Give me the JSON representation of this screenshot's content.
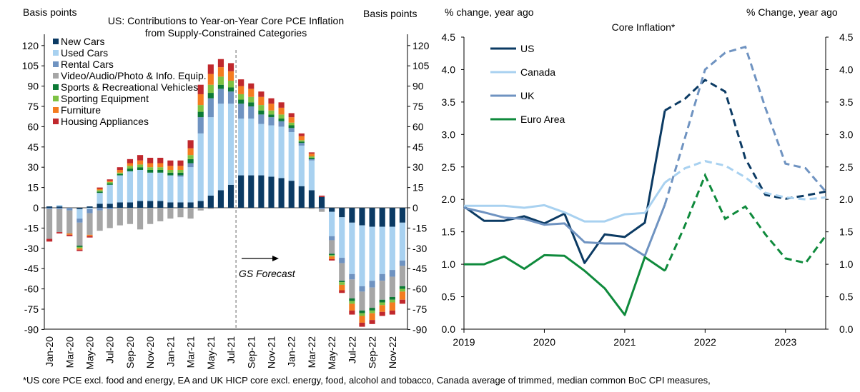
{
  "chart_data": [
    {
      "type": "bar",
      "stacked": true,
      "title": "US: Contributions to Year-on-Year Core PCE Inflation from Supply-Constrained Categories",
      "title_lines": [
        "US: Contributions to Year-on-Year Core PCE Inflation",
        "from Supply-Constrained Categories"
      ],
      "ylabel_left": "Basis points",
      "ylabel_right": "Basis points",
      "ylim": [
        -90,
        130
      ],
      "yticks": [
        120,
        105,
        90,
        75,
        60,
        45,
        30,
        15,
        0,
        -15,
        -30,
        -45,
        -60,
        -75,
        -90
      ],
      "ytick_labels": [
        "120",
        "105",
        "90",
        "75",
        "60",
        "45",
        "30",
        "15",
        "0",
        "-15",
        "-30",
        "-45",
        "-60",
        "-75",
        "-90"
      ],
      "categories": [
        "Jan-20",
        "Feb-20",
        "Mar-20",
        "Apr-20",
        "May-20",
        "Jun-20",
        "Jul-20",
        "Aug-20",
        "Sep-20",
        "Oct-20",
        "Nov-20",
        "Dec-20",
        "Jan-21",
        "Feb-21",
        "Mar-21",
        "Apr-21",
        "May-21",
        "Jun-21",
        "Jul-21",
        "Aug-21",
        "Sep-21",
        "Oct-21",
        "Nov-21",
        "Dec-21",
        "Jan-22",
        "Feb-22",
        "Mar-22",
        "Apr-22",
        "May-22",
        "Jun-22",
        "Jul-22",
        "Aug-22",
        "Sep-22",
        "Oct-22",
        "Nov-22",
        "Dec-22"
      ],
      "xtick_labels": [
        "Jan-20",
        "Mar-20",
        "May-20",
        "Jul-20",
        "Sep-20",
        "Nov-20",
        "Jan-21",
        "Mar-21",
        "May-21",
        "Jul-21",
        "Sep-21",
        "Nov-21",
        "Jan-22",
        "Mar-22",
        "May-22",
        "Jul-22",
        "Sep-22",
        "Nov-22"
      ],
      "forecast_start": "Aug-21",
      "annotation": "GS Forecast",
      "series": [
        {
          "name": "New Cars",
          "color": "#0b3a63",
          "values": [
            1,
            1,
            0,
            -1,
            1,
            3,
            3,
            4,
            4,
            5,
            5,
            5,
            4,
            4,
            4,
            5,
            9,
            13,
            17,
            24,
            24,
            24,
            23,
            22,
            20,
            16,
            13,
            8,
            -3,
            -7,
            -11,
            -13,
            -14,
            -14,
            -14,
            -11
          ]
        },
        {
          "name": "Used Cars",
          "color": "#a8d1f0",
          "values": [
            0,
            1,
            0,
            -7,
            -1,
            8,
            14,
            20,
            23,
            23,
            21,
            21,
            20,
            19,
            26,
            50,
            58,
            64,
            60,
            42,
            42,
            38,
            38,
            38,
            36,
            30,
            22,
            0,
            -18,
            -30,
            -38,
            -45,
            -40,
            -35,
            -32,
            -28
          ]
        },
        {
          "name": "Rental Cars",
          "color": "#6f93c1",
          "values": [
            -1,
            -1,
            -2,
            -3,
            -3,
            -2,
            -1,
            0,
            0,
            0,
            0,
            0,
            0,
            1,
            3,
            12,
            14,
            11,
            9,
            11,
            9,
            7,
            6,
            4,
            3,
            2,
            1,
            -1,
            -3,
            -4,
            -4,
            -4,
            -5,
            -5,
            -5,
            -4
          ]
        },
        {
          "name": "Video/Audio/Photo & Info. Equip.",
          "color": "#a6a6a6",
          "values": [
            -22,
            -17,
            -17,
            -17,
            -16,
            -15,
            -14,
            -13,
            -12,
            -16,
            -12,
            -10,
            -8,
            -7,
            -8,
            -2,
            -1,
            0,
            0,
            0,
            0,
            0,
            0,
            0,
            0,
            0,
            -1,
            -2,
            -10,
            -13,
            -14,
            -14,
            -15,
            -14,
            -15,
            -15
          ]
        },
        {
          "name": "Sports & Recreational Vehicles",
          "color": "#0c7a35",
          "values": [
            0,
            0,
            0,
            -1,
            0,
            1,
            1,
            1,
            2,
            2,
            2,
            2,
            2,
            2,
            3,
            4,
            4,
            3,
            3,
            3,
            3,
            3,
            2,
            2,
            2,
            1,
            1,
            0,
            -1,
            -1,
            -2,
            -2,
            -2,
            -2,
            -2,
            -2
          ]
        },
        {
          "name": "Sporting Equipment",
          "color": "#7dc243",
          "values": [
            0,
            0,
            0,
            -1,
            0,
            1,
            1,
            1,
            2,
            2,
            2,
            2,
            2,
            2,
            3,
            5,
            6,
            6,
            5,
            4,
            4,
            4,
            3,
            3,
            2,
            1,
            1,
            0,
            -1,
            -2,
            -2,
            -2,
            -2,
            -2,
            -2,
            -2
          ]
        },
        {
          "name": "Furniture",
          "color": "#f47c20",
          "values": [
            0,
            0,
            -1,
            -1,
            -1,
            1,
            1,
            2,
            2,
            3,
            3,
            3,
            3,
            3,
            5,
            8,
            8,
            7,
            7,
            6,
            6,
            6,
            5,
            5,
            4,
            3,
            2,
            0,
            -2,
            -4,
            -5,
            -5,
            -5,
            -5,
            -6,
            -6
          ]
        },
        {
          "name": "Housing Appliances",
          "color": "#c0282d",
          "values": [
            -2,
            -1,
            -1,
            -1,
            -1,
            1,
            1,
            2,
            3,
            4,
            4,
            4,
            4,
            4,
            6,
            7,
            7,
            6,
            6,
            5,
            4,
            4,
            4,
            4,
            3,
            2,
            1,
            1,
            -1,
            -2,
            -3,
            -3,
            -3,
            -3,
            -3,
            -3
          ]
        }
      ]
    },
    {
      "type": "line",
      "title": "Core Inflation*",
      "ylabel_left": "% change, year ago",
      "ylabel_right": "% Change, year ago",
      "ylim": [
        0.0,
        4.5
      ],
      "yticks": [
        4.5,
        4.0,
        3.5,
        3.0,
        2.5,
        2.0,
        1.5,
        1.0,
        0.5,
        0.0
      ],
      "ytick_labels": [
        "4.5",
        "4.0",
        "3.5",
        "3.0",
        "2.5",
        "2.0",
        "1.5",
        "1.0",
        "0.5",
        "0.0"
      ],
      "xlim": [
        2019.0,
        2023.5
      ],
      "xtick_labels": [
        "2019",
        "2020",
        "2021",
        "2022",
        "2023"
      ],
      "x_quarterly": [
        2019.0,
        2019.25,
        2019.5,
        2019.75,
        2020.0,
        2020.25,
        2020.5,
        2020.75,
        2021.0,
        2021.25,
        2021.5,
        2021.75,
        2022.0,
        2022.25,
        2022.5,
        2022.75,
        2023.0,
        2023.25,
        2023.5
      ],
      "x_monthly": [
        2019.0,
        2019.0833,
        2019.1667,
        2019.25,
        2019.3333,
        2019.4167,
        2019.5,
        2019.5833,
        2019.6667,
        2019.75,
        2019.8333,
        2019.9167,
        2020.0,
        2020.0833,
        2020.1667,
        2020.25,
        2020.3333,
        2020.4167,
        2020.5,
        2020.5833,
        2020.6667,
        2020.75,
        2020.8333,
        2020.9167,
        2021.0,
        2021.0833,
        2021.1667,
        2021.25,
        2021.3333,
        2021.4167,
        2021.5
      ],
      "series": [
        {
          "name": "US",
          "color": "#0b3a63",
          "values": [
            1.89,
            1.67,
            1.67,
            1.74,
            1.63,
            1.78,
            1.02,
            1.46,
            1.42,
            1.64,
            3.37,
            3.55,
            3.84,
            3.66,
            2.63,
            2.07,
            2.01,
            2.06,
            2.12
          ],
          "forecast_from_index": 10
        },
        {
          "name": "Canada",
          "color": "#a8d1f0",
          "values": [
            1.9,
            1.9,
            1.9,
            1.87,
            1.91,
            1.8,
            1.66,
            1.66,
            1.77,
            1.79,
            2.26,
            2.48,
            2.59,
            2.52,
            2.34,
            2.1,
            2.03,
            2.0,
            2.03
          ],
          "forecast_from_index": 10
        },
        {
          "name": "UK",
          "color": "#6f93c1",
          "values": [
            1.87,
            1.8,
            1.72,
            1.7,
            1.61,
            1.63,
            1.34,
            1.32,
            1.32,
            1.13,
            1.92,
            2.95,
            4.0,
            4.26,
            4.35,
            3.41,
            2.55,
            2.48,
            2.12
          ],
          "forecast_from_index": 10
        },
        {
          "name": "Euro Area",
          "color": "#0f8a3c",
          "values": [
            1.0,
            1.0,
            1.12,
            0.93,
            1.14,
            1.13,
            0.9,
            0.63,
            0.22,
            1.11,
            0.9,
            1.6,
            2.37,
            1.7,
            1.89,
            1.46,
            1.09,
            1.02,
            1.44
          ],
          "forecast_from_index": 10
        }
      ]
    }
  ],
  "footnote": "*US core PCE excl. food and energy, EA and UK HICP core excl. energy, food, alcohol and tobacco, Canada average of trimmed, median common BoC CPI measures,"
}
